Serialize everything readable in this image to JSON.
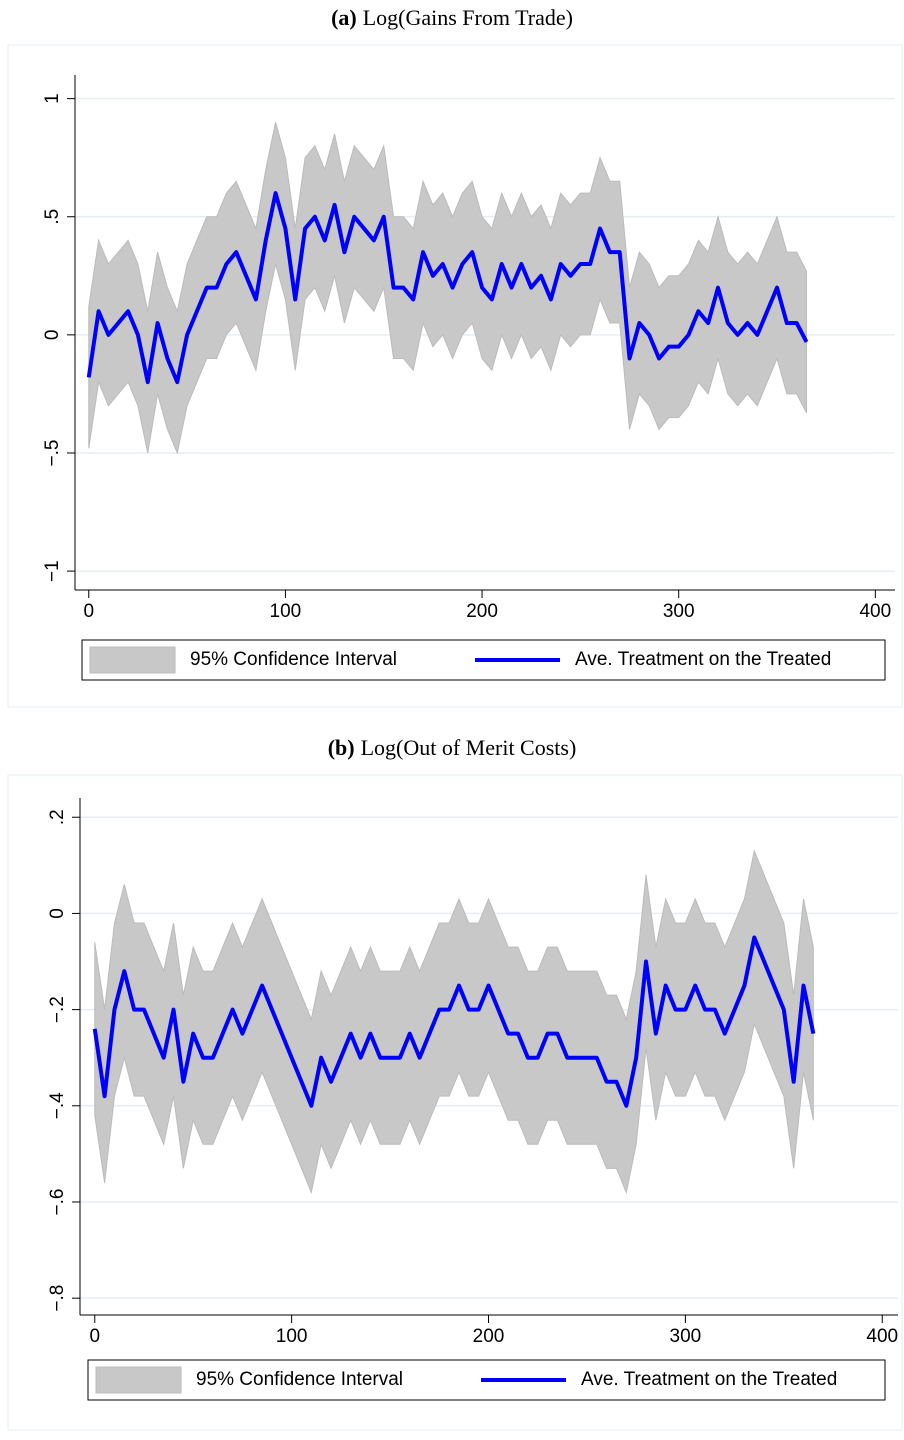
{
  "chart_data": [
    {
      "type": "line",
      "panel": "(a)",
      "title": "Log(Gains From Trade)",
      "x": [
        0,
        5,
        10,
        15,
        20,
        25,
        30,
        35,
        40,
        45,
        50,
        55,
        60,
        65,
        70,
        75,
        80,
        85,
        90,
        95,
        100,
        105,
        110,
        115,
        120,
        125,
        130,
        135,
        140,
        145,
        150,
        155,
        160,
        165,
        170,
        175,
        180,
        185,
        190,
        195,
        200,
        205,
        210,
        215,
        220,
        225,
        230,
        235,
        240,
        245,
        250,
        255,
        260,
        265,
        270,
        275,
        280,
        285,
        290,
        295,
        300,
        305,
        310,
        315,
        320,
        325,
        330,
        335,
        340,
        345,
        350,
        355,
        360,
        365
      ],
      "series": [
        {
          "name": "95% Confidence Interval",
          "color": "#c8c8c8",
          "lower": [
            -0.48,
            -0.2,
            -0.3,
            -0.25,
            -0.2,
            -0.3,
            -0.5,
            -0.25,
            -0.4,
            -0.5,
            -0.3,
            -0.2,
            -0.1,
            -0.1,
            0,
            0.05,
            -0.05,
            -0.15,
            0.1,
            0.3,
            0.15,
            -0.15,
            0.15,
            0.2,
            0.1,
            0.25,
            0.05,
            0.2,
            0.15,
            0.1,
            0.2,
            -0.1,
            -0.1,
            -0.15,
            0.05,
            -0.05,
            0,
            -0.1,
            0,
            0.05,
            -0.1,
            -0.15,
            0,
            -0.1,
            0,
            -0.1,
            -0.05,
            -0.15,
            0,
            -0.05,
            0,
            0,
            0.15,
            0.05,
            0.05,
            -0.4,
            -0.25,
            -0.3,
            -0.4,
            -0.35,
            -0.35,
            -0.3,
            -0.2,
            -0.25,
            -0.1,
            -0.25,
            -0.3,
            -0.25,
            -0.3,
            -0.2,
            -0.1,
            -0.25,
            -0.25,
            -0.33
          ],
          "upper": [
            0.12,
            0.4,
            0.3,
            0.35,
            0.4,
            0.3,
            0.1,
            0.35,
            0.2,
            0.1,
            0.3,
            0.4,
            0.5,
            0.5,
            0.6,
            0.65,
            0.55,
            0.45,
            0.7,
            0.9,
            0.75,
            0.45,
            0.75,
            0.8,
            0.7,
            0.85,
            0.65,
            0.8,
            0.75,
            0.7,
            0.8,
            0.5,
            0.5,
            0.45,
            0.65,
            0.55,
            0.6,
            0.5,
            0.6,
            0.65,
            0.5,
            0.45,
            0.6,
            0.5,
            0.6,
            0.5,
            0.55,
            0.45,
            0.6,
            0.55,
            0.6,
            0.6,
            0.75,
            0.65,
            0.65,
            0.2,
            0.35,
            0.3,
            0.2,
            0.25,
            0.25,
            0.3,
            0.4,
            0.35,
            0.5,
            0.35,
            0.3,
            0.35,
            0.3,
            0.4,
            0.5,
            0.35,
            0.35,
            0.27
          ]
        },
        {
          "name": "Ave. Treatment on the Treated",
          "color": "#0000ff",
          "values": [
            -0.18,
            0.1,
            0,
            0.05,
            0.1,
            0,
            -0.2,
            0.05,
            -0.1,
            -0.2,
            0,
            0.1,
            0.2,
            0.2,
            0.3,
            0.35,
            0.25,
            0.15,
            0.4,
            0.6,
            0.45,
            0.15,
            0.45,
            0.5,
            0.4,
            0.55,
            0.35,
            0.5,
            0.45,
            0.4,
            0.5,
            0.2,
            0.2,
            0.15,
            0.35,
            0.25,
            0.3,
            0.2,
            0.3,
            0.35,
            0.2,
            0.15,
            0.3,
            0.2,
            0.3,
            0.2,
            0.25,
            0.15,
            0.3,
            0.25,
            0.3,
            0.3,
            0.45,
            0.35,
            0.35,
            -0.1,
            0.05,
            0,
            -0.1,
            -0.05,
            -0.05,
            0,
            0.1,
            0.05,
            0.2,
            0.05,
            0,
            0.05,
            0,
            0.1,
            0.2,
            0.05,
            0.05,
            -0.03
          ]
        }
      ],
      "xlim": [
        -7,
        410
      ],
      "xticks": [
        0,
        100,
        200,
        300,
        400
      ],
      "ylim": [
        -1.08,
        1.1
      ],
      "yticks": [
        {
          "value": -1,
          "label": "−1"
        },
        {
          "value": -0.5,
          "label": "−.5"
        },
        0,
        {
          "value": 0.5,
          "label": ".5"
        },
        1
      ],
      "grid": true
    },
    {
      "type": "line",
      "panel": "(b)",
      "title": "Log(Out of Merit Costs)",
      "x": [
        0,
        5,
        10,
        15,
        20,
        25,
        30,
        35,
        40,
        45,
        50,
        55,
        60,
        65,
        70,
        75,
        80,
        85,
        90,
        95,
        100,
        105,
        110,
        115,
        120,
        125,
        130,
        135,
        140,
        145,
        150,
        155,
        160,
        165,
        170,
        175,
        180,
        185,
        190,
        195,
        200,
        205,
        210,
        215,
        220,
        225,
        230,
        235,
        240,
        245,
        250,
        255,
        260,
        265,
        270,
        275,
        280,
        285,
        290,
        295,
        300,
        305,
        310,
        315,
        320,
        325,
        330,
        335,
        340,
        345,
        350,
        355,
        360,
        365
      ],
      "series": [
        {
          "name": "95% Confidence Interval",
          "color": "#c8c8c8",
          "lower": [
            -0.42,
            -0.56,
            -0.38,
            -0.3,
            -0.38,
            -0.38,
            -0.43,
            -0.48,
            -0.38,
            -0.53,
            -0.43,
            -0.48,
            -0.48,
            -0.43,
            -0.38,
            -0.43,
            -0.38,
            -0.33,
            -0.38,
            -0.43,
            -0.48,
            -0.53,
            -0.58,
            -0.48,
            -0.53,
            -0.48,
            -0.43,
            -0.48,
            -0.43,
            -0.48,
            -0.48,
            -0.48,
            -0.43,
            -0.48,
            -0.43,
            -0.38,
            -0.38,
            -0.33,
            -0.38,
            -0.38,
            -0.33,
            -0.38,
            -0.43,
            -0.43,
            -0.48,
            -0.48,
            -0.43,
            -0.43,
            -0.48,
            -0.48,
            -0.48,
            -0.48,
            -0.53,
            -0.53,
            -0.58,
            -0.48,
            -0.28,
            -0.43,
            -0.33,
            -0.38,
            -0.38,
            -0.33,
            -0.38,
            -0.38,
            -0.43,
            -0.38,
            -0.33,
            -0.23,
            -0.28,
            -0.33,
            -0.38,
            -0.53,
            -0.33,
            -0.43
          ],
          "upper": [
            -0.06,
            -0.2,
            -0.02,
            0.06,
            -0.02,
            -0.02,
            -0.07,
            -0.12,
            -0.02,
            -0.17,
            -0.07,
            -0.12,
            -0.12,
            -0.07,
            -0.02,
            -0.07,
            -0.02,
            0.03,
            -0.02,
            -0.07,
            -0.12,
            -0.17,
            -0.22,
            -0.12,
            -0.17,
            -0.12,
            -0.07,
            -0.12,
            -0.07,
            -0.12,
            -0.12,
            -0.12,
            -0.07,
            -0.12,
            -0.07,
            -0.02,
            -0.02,
            0.03,
            -0.02,
            -0.02,
            0.03,
            -0.02,
            -0.07,
            -0.07,
            -0.12,
            -0.12,
            -0.07,
            -0.07,
            -0.12,
            -0.12,
            -0.12,
            -0.12,
            -0.17,
            -0.17,
            -0.22,
            -0.12,
            0.08,
            -0.07,
            0.03,
            -0.02,
            -0.02,
            0.03,
            -0.02,
            -0.02,
            -0.07,
            -0.02,
            0.03,
            0.13,
            0.08,
            0.03,
            -0.02,
            -0.17,
            0.03,
            -0.07
          ]
        },
        {
          "name": "Ave. Treatment on the Treated",
          "color": "#0000ff",
          "values": [
            -0.24,
            -0.38,
            -0.2,
            -0.12,
            -0.2,
            -0.2,
            -0.25,
            -0.3,
            -0.2,
            -0.35,
            -0.25,
            -0.3,
            -0.3,
            -0.25,
            -0.2,
            -0.25,
            -0.2,
            -0.15,
            -0.2,
            -0.25,
            -0.3,
            -0.35,
            -0.4,
            -0.3,
            -0.35,
            -0.3,
            -0.25,
            -0.3,
            -0.25,
            -0.3,
            -0.3,
            -0.3,
            -0.25,
            -0.3,
            -0.25,
            -0.2,
            -0.2,
            -0.15,
            -0.2,
            -0.2,
            -0.15,
            -0.2,
            -0.25,
            -0.25,
            -0.3,
            -0.3,
            -0.25,
            -0.25,
            -0.3,
            -0.3,
            -0.3,
            -0.3,
            -0.35,
            -0.35,
            -0.4,
            -0.3,
            -0.1,
            -0.25,
            -0.15,
            -0.2,
            -0.2,
            -0.15,
            -0.2,
            -0.2,
            -0.25,
            -0.2,
            -0.15,
            -0.05,
            -0.1,
            -0.15,
            -0.2,
            -0.35,
            -0.15,
            -0.25
          ]
        }
      ],
      "xlim": [
        -7.5,
        408
      ],
      "xticks": [
        0,
        100,
        200,
        300,
        400
      ],
      "ylim": [
        -0.835,
        0.24
      ],
      "yticks": [
        {
          "value": -0.8,
          "label": "−.8"
        },
        {
          "value": -0.6,
          "label": "−.6"
        },
        {
          "value": -0.4,
          "label": "−.4"
        },
        {
          "value": -0.2,
          "label": "−.2"
        },
        0,
        {
          "value": 0.2,
          "label": ".2"
        }
      ],
      "grid": true
    }
  ]
}
